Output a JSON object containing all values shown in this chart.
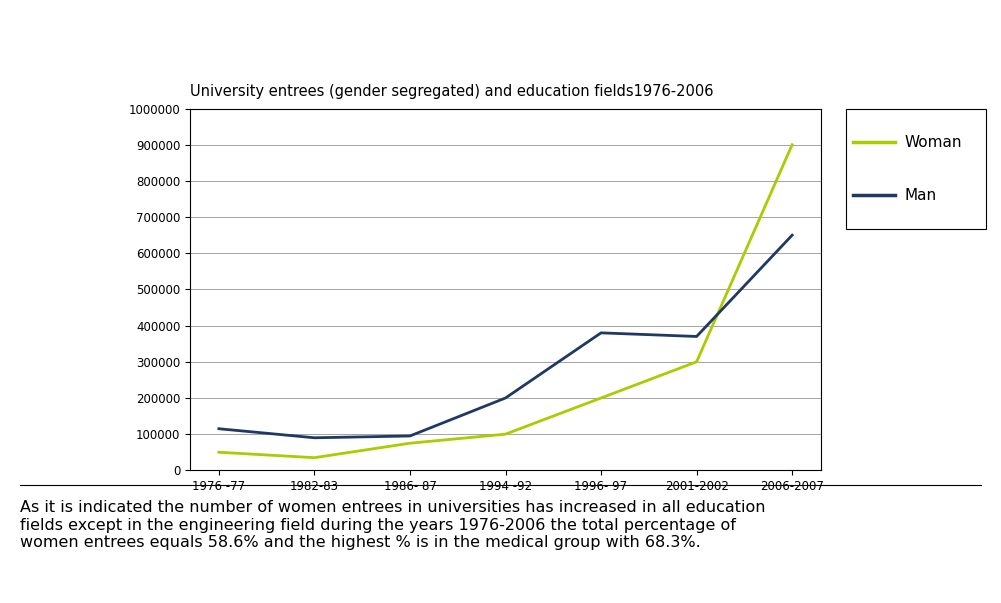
{
  "title": "University entrees (gender segregated) and education fields1976-2006",
  "x_labels": [
    "1976 -77",
    "1982-83",
    "1986- 87",
    "1994 -92",
    "1996- 97",
    "2001-2002",
    "2006-2007"
  ],
  "x_positions": [
    0,
    1,
    2,
    3,
    4,
    5,
    6
  ],
  "woman_values": [
    50000,
    35000,
    75000,
    100000,
    200000,
    300000,
    900000
  ],
  "man_values": [
    115000,
    90000,
    95000,
    200000,
    380000,
    370000,
    650000
  ],
  "woman_color": "#aacc00",
  "man_color": "#1f3864",
  "ylim": [
    0,
    1000000
  ],
  "yticks": [
    0,
    100000,
    200000,
    300000,
    400000,
    500000,
    600000,
    700000,
    800000,
    900000,
    1000000
  ],
  "legend_labels": [
    "Woman",
    "Man"
  ],
  "annotation": "As it is indicated the number of women entrees in universities has increased in all education\nfields except in the engineering field during the years 1976-2006 the total percentage of\nwomen entrees equals 58.6% and the highest % is in the medical group with 68.3%.",
  "annotation_fontsize": 11.5,
  "title_fontsize": 10.5
}
